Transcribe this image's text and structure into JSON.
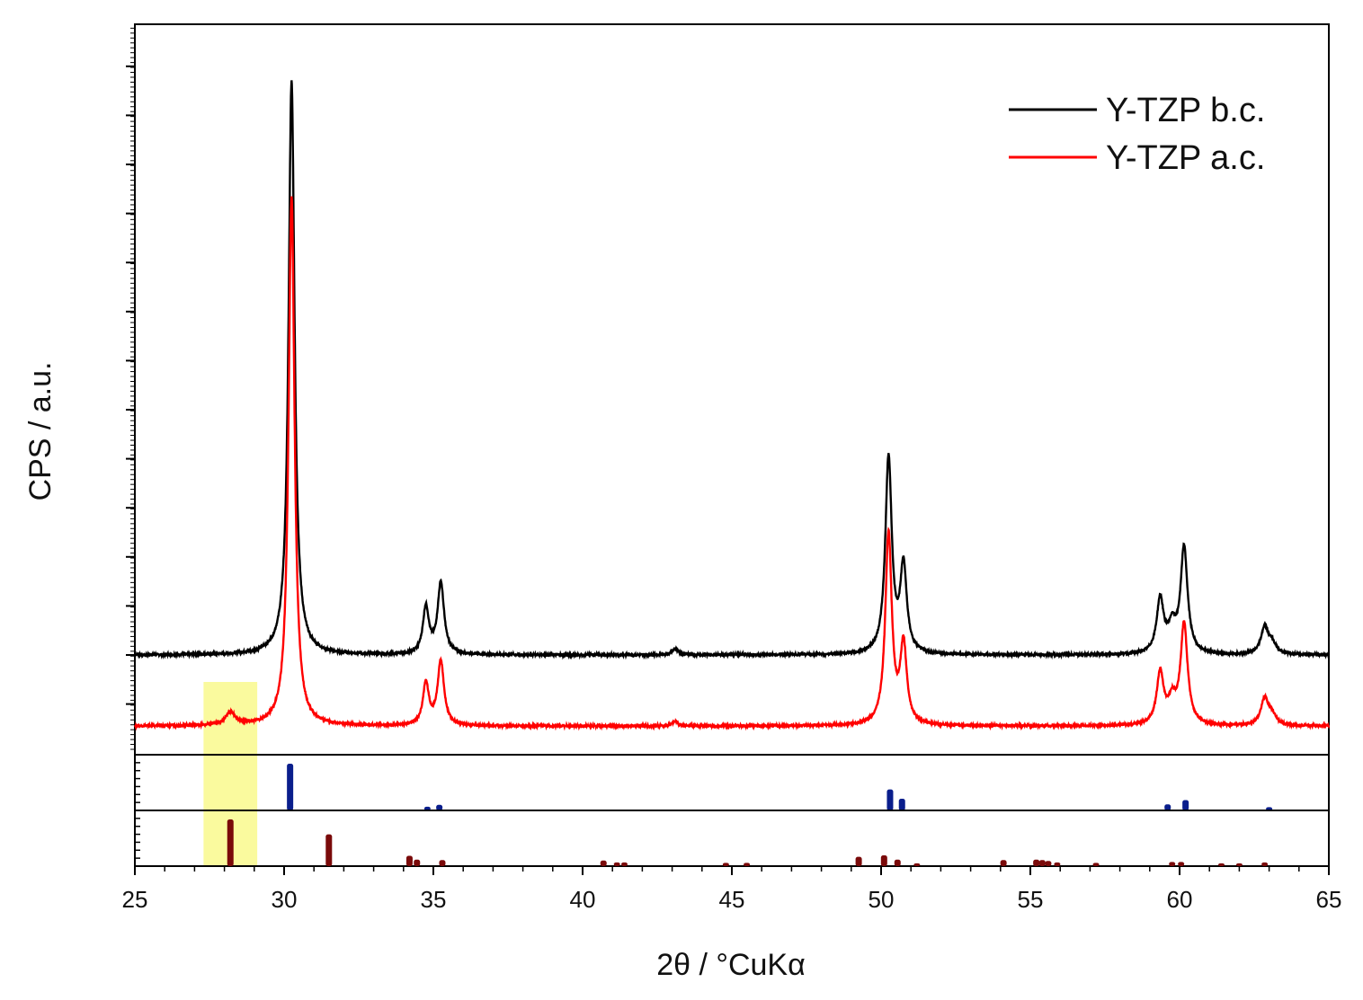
{
  "chart_data": {
    "type": "line",
    "xlabel": "2θ / °CuKα",
    "ylabel": "CPS / a.u.",
    "xlim": [
      25,
      65
    ],
    "x_ticks": [
      "25",
      "30",
      "35",
      "40",
      "45",
      "50",
      "55",
      "60",
      "65"
    ],
    "y_tick_labels": "none (arbitrary units)",
    "legend_position": "top-right",
    "highlight_band": {
      "x_range": [
        27.3,
        29.1
      ],
      "color": "#fafa9e"
    },
    "series": [
      {
        "name": "Y-TZP b.c.",
        "color": "#000000",
        "baseline": 0.0,
        "peaks": [
          {
            "x": 30.25,
            "height": 11.7,
            "width": 0.12
          },
          {
            "x": 34.75,
            "height": 0.95,
            "width": 0.12
          },
          {
            "x": 35.25,
            "height": 1.45,
            "width": 0.13
          },
          {
            "x": 43.1,
            "height": 0.12,
            "width": 0.12
          },
          {
            "x": 50.25,
            "height": 4.0,
            "width": 0.13
          },
          {
            "x": 50.75,
            "height": 1.75,
            "width": 0.13
          },
          {
            "x": 59.35,
            "height": 1.1,
            "width": 0.14
          },
          {
            "x": 59.75,
            "height": 0.5,
            "width": 0.16
          },
          {
            "x": 60.15,
            "height": 2.15,
            "width": 0.14
          },
          {
            "x": 62.85,
            "height": 0.55,
            "width": 0.15
          },
          {
            "x": 63.1,
            "height": 0.2,
            "width": 0.15
          }
        ]
      },
      {
        "name": "Y-TZP a.c.",
        "color": "#ff0000",
        "baseline": -1.45,
        "peaks": [
          {
            "x": 28.2,
            "height": 0.26,
            "width": 0.2
          },
          {
            "x": 30.25,
            "height": 10.8,
            "width": 0.12
          },
          {
            "x": 34.75,
            "height": 0.85,
            "width": 0.12
          },
          {
            "x": 35.25,
            "height": 1.3,
            "width": 0.13
          },
          {
            "x": 43.1,
            "height": 0.09,
            "width": 0.12
          },
          {
            "x": 50.25,
            "height": 3.9,
            "width": 0.13
          },
          {
            "x": 50.75,
            "height": 1.6,
            "width": 0.13
          },
          {
            "x": 59.35,
            "height": 1.05,
            "width": 0.14
          },
          {
            "x": 59.75,
            "height": 0.45,
            "width": 0.16
          },
          {
            "x": 60.15,
            "height": 2.05,
            "width": 0.14
          },
          {
            "x": 62.85,
            "height": 0.55,
            "width": 0.15
          },
          {
            "x": 63.1,
            "height": 0.2,
            "width": 0.15
          }
        ]
      }
    ],
    "reference_panels": [
      {
        "color": "#0a1e8c",
        "sticks": [
          {
            "x": 30.2,
            "intensity": 100
          },
          {
            "x": 34.8,
            "intensity": 8
          },
          {
            "x": 35.2,
            "intensity": 12
          },
          {
            "x": 50.3,
            "intensity": 45
          },
          {
            "x": 50.7,
            "intensity": 25
          },
          {
            "x": 59.6,
            "intensity": 13
          },
          {
            "x": 60.2,
            "intensity": 22
          },
          {
            "x": 63.0,
            "intensity": 7
          }
        ]
      },
      {
        "color": "#7a0a0a",
        "sticks": [
          {
            "x": 28.2,
            "intensity": 100
          },
          {
            "x": 31.5,
            "intensity": 68
          },
          {
            "x": 34.2,
            "intensity": 22
          },
          {
            "x": 34.45,
            "intensity": 14
          },
          {
            "x": 35.3,
            "intensity": 13
          },
          {
            "x": 40.7,
            "intensity": 12
          },
          {
            "x": 41.15,
            "intensity": 8
          },
          {
            "x": 41.4,
            "intensity": 8
          },
          {
            "x": 44.8,
            "intensity": 7
          },
          {
            "x": 45.5,
            "intensity": 7
          },
          {
            "x": 49.25,
            "intensity": 20
          },
          {
            "x": 50.1,
            "intensity": 23
          },
          {
            "x": 50.55,
            "intensity": 14
          },
          {
            "x": 51.2,
            "intensity": 6
          },
          {
            "x": 54.1,
            "intensity": 13
          },
          {
            "x": 55.2,
            "intensity": 14
          },
          {
            "x": 55.4,
            "intensity": 13
          },
          {
            "x": 55.6,
            "intensity": 11
          },
          {
            "x": 55.9,
            "intensity": 8
          },
          {
            "x": 57.2,
            "intensity": 7
          },
          {
            "x": 59.75,
            "intensity": 9
          },
          {
            "x": 60.05,
            "intensity": 9
          },
          {
            "x": 61.4,
            "intensity": 6
          },
          {
            "x": 62.0,
            "intensity": 6
          },
          {
            "x": 62.85,
            "intensity": 8
          }
        ]
      }
    ]
  }
}
